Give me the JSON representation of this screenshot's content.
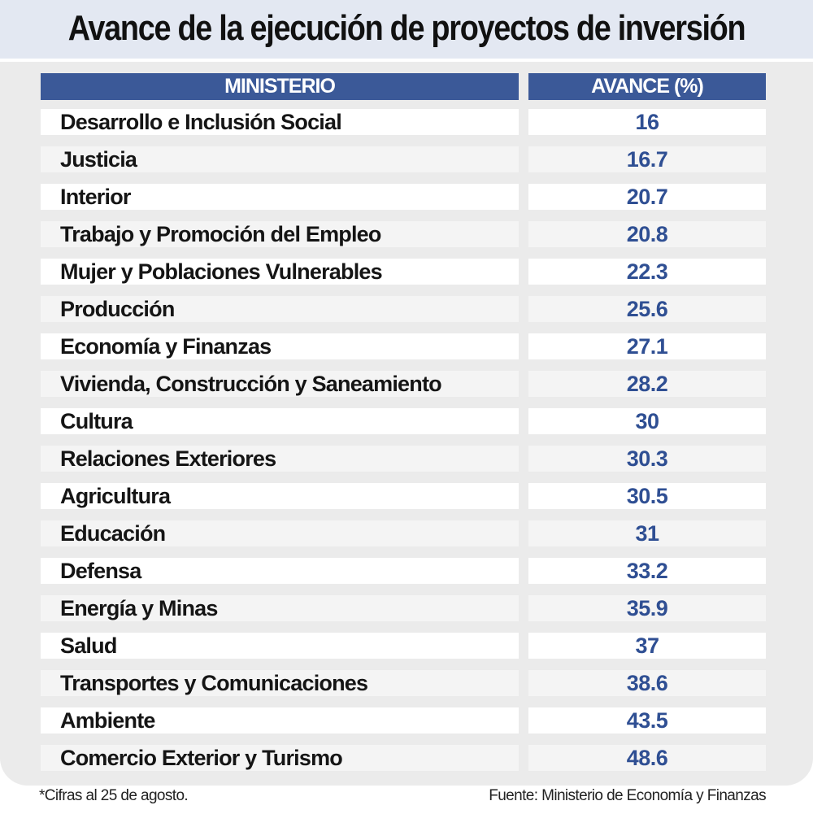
{
  "title": "Avance de la ejecución de proyectos de inversión",
  "chart_data": {
    "type": "table",
    "title": "Avance de la ejecución de proyectos de inversión",
    "columns": [
      "MINISTERIO",
      "AVANCE (%)"
    ],
    "rows": [
      [
        "Desarrollo e Inclusión Social",
        "16"
      ],
      [
        "Justicia",
        "16.7"
      ],
      [
        "Interior",
        "20.7"
      ],
      [
        "Trabajo y Promoción del Empleo",
        "20.8"
      ],
      [
        "Mujer y Poblaciones Vulnerables",
        "22.3"
      ],
      [
        "Producción",
        "25.6"
      ],
      [
        "Economía y Finanzas",
        "27.1"
      ],
      [
        "Vivienda, Construcción y Saneamiento",
        "28.2"
      ],
      [
        "Cultura",
        "30"
      ],
      [
        "Relaciones Exteriores",
        "30.3"
      ],
      [
        "Agricultura",
        "30.5"
      ],
      [
        "Educación",
        "31"
      ],
      [
        "Defensa",
        "33.2"
      ],
      [
        "Energía y Minas",
        "35.9"
      ],
      [
        "Salud",
        "37"
      ],
      [
        "Transportes y Comunicaciones",
        "38.6"
      ],
      [
        "Ambiente",
        "43.5"
      ],
      [
        "Comercio Exterior y Turismo",
        "48.6"
      ]
    ]
  },
  "footnote": "*Cifras al 25 de agosto.",
  "source": "Fuente: Ministerio de Economía y Finanzas",
  "colors": {
    "header": "#3b5998",
    "value": "#2f4f93",
    "panel": "#ebebeb",
    "title_band": "#e3e8f2"
  }
}
